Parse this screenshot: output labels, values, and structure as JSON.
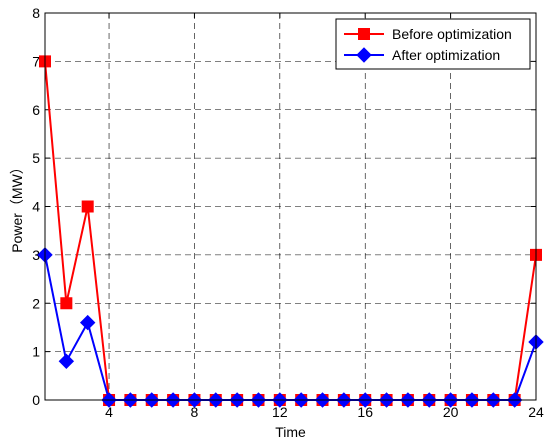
{
  "chart_data": {
    "type": "line",
    "xlabel": "Time",
    "ylabel": "Power（MW）",
    "xlim": [
      1,
      24
    ],
    "ylim": [
      0,
      8
    ],
    "x_ticks": [
      4,
      8,
      12,
      16,
      20,
      24
    ],
    "y_ticks": [
      0,
      1,
      2,
      3,
      4,
      5,
      6,
      7,
      8
    ],
    "grid": true,
    "legend_position": "top-right",
    "x": [
      1,
      2,
      3,
      4,
      5,
      6,
      7,
      8,
      9,
      10,
      11,
      12,
      13,
      14,
      15,
      16,
      17,
      18,
      19,
      20,
      21,
      22,
      23,
      24
    ],
    "series": [
      {
        "name": "Before optimization",
        "color": "#ff0000",
        "marker": "square",
        "values": [
          7,
          2,
          4,
          0,
          0,
          0,
          0,
          0,
          0,
          0,
          0,
          0,
          0,
          0,
          0,
          0,
          0,
          0,
          0,
          0,
          0,
          0,
          0,
          3
        ]
      },
      {
        "name": "After optimization",
        "color": "#0000ff",
        "marker": "diamond",
        "values": [
          3,
          0.8,
          1.6,
          0,
          0,
          0,
          0,
          0,
          0,
          0,
          0,
          0,
          0,
          0,
          0,
          0,
          0,
          0,
          0,
          0,
          0,
          0,
          0,
          1.2
        ]
      }
    ]
  }
}
